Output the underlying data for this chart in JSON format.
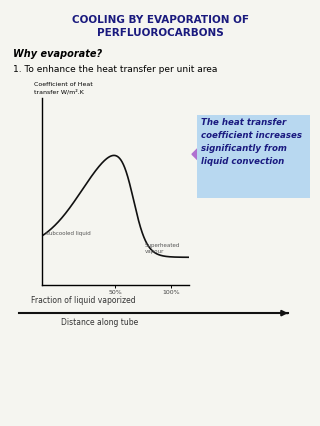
{
  "title_line1": "COOLING BY EVAPORATION OF",
  "title_line2": "PERFLUOROCARBONS",
  "title_color": "#1a1a7e",
  "subtitle": "Why evaporate?",
  "point1": "1. To enhance the heat transfer per unit area",
  "ylabel": "Coefficient of Heat\ntransfer W/m².K",
  "xlabel_top": "Fraction of liquid vaporized",
  "xlabel_bottom": "Distance along tube",
  "tick1": "50%",
  "tick2": "100%",
  "label_subcooled": "subcooled liquid",
  "label_superheated": "Superheated\nvapour",
  "annotation_text": "The heat transfer\ncoefficient increases\nsignificantly from\nliquid convection",
  "annotation_bg": "#b8d8f0",
  "background": "#f5f5f0",
  "curve_color": "#111111",
  "arrow_color": "#b070d0"
}
